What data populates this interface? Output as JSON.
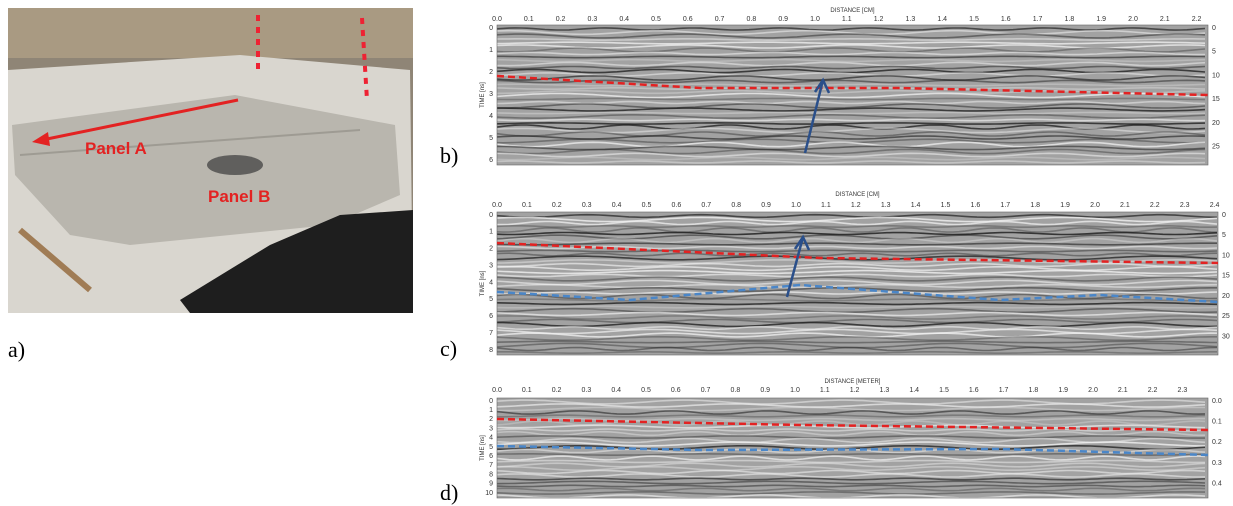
{
  "figure": {
    "photo": {
      "label": "a)",
      "annotations": [
        "Panel A",
        "Panel B"
      ]
    },
    "radargrams": [
      {
        "label": "b)",
        "x_axis_title": "DISTANCE [CM]",
        "y_axis_title": "TIME [ns]",
        "x_ticks": [
          "0.0",
          "0.1",
          "0.2",
          "0.3",
          "0.4",
          "0.5",
          "0.6",
          "0.7",
          "0.8",
          "0.9",
          "1.0",
          "1.1",
          "1.2",
          "1.3",
          "1.4",
          "1.5",
          "1.6",
          "1.7",
          "1.8",
          "1.9",
          "2.0",
          "2.1",
          "2.2"
        ],
        "y_ticks_left": [
          "0",
          "1",
          "2",
          "3",
          "4",
          "5",
          "6"
        ],
        "y_ticks_right": [
          "0",
          "5",
          "10",
          "15",
          "20",
          "25"
        ]
      },
      {
        "label": "c)",
        "x_axis_title": "DISTANCE [CM]",
        "y_axis_title": "TIME [ns]",
        "x_ticks": [
          "0.0",
          "0.1",
          "0.2",
          "0.3",
          "0.4",
          "0.5",
          "0.6",
          "0.7",
          "0.8",
          "0.9",
          "1.0",
          "1.1",
          "1.2",
          "1.3",
          "1.4",
          "1.5",
          "1.6",
          "1.7",
          "1.8",
          "1.9",
          "2.0",
          "2.1",
          "2.2",
          "2.3",
          "2.4"
        ],
        "y_ticks_left": [
          "0",
          "1",
          "2",
          "3",
          "4",
          "5",
          "6",
          "7",
          "8"
        ],
        "y_ticks_right": [
          "0",
          "5",
          "10",
          "15",
          "20",
          "25",
          "30"
        ]
      },
      {
        "label": "d)",
        "x_axis_title": "DISTANCE [METER]",
        "y_axis_title": "TIME [ns]",
        "x_ticks": [
          "0.0",
          "0.1",
          "0.2",
          "0.3",
          "0.4",
          "0.5",
          "0.6",
          "0.7",
          "0.8",
          "0.9",
          "1.0",
          "1.1",
          "1.2",
          "1.3",
          "1.4",
          "1.5",
          "1.6",
          "1.7",
          "1.8",
          "1.9",
          "2.0",
          "2.1",
          "2.2",
          "2.3"
        ],
        "y_ticks_left": [
          "0",
          "1",
          "2",
          "3",
          "4",
          "5",
          "6",
          "7",
          "8",
          "9",
          "10"
        ],
        "y_ticks_right": [
          "0.0",
          "0.1",
          "0.2",
          "0.3",
          "0.4"
        ]
      }
    ]
  }
}
